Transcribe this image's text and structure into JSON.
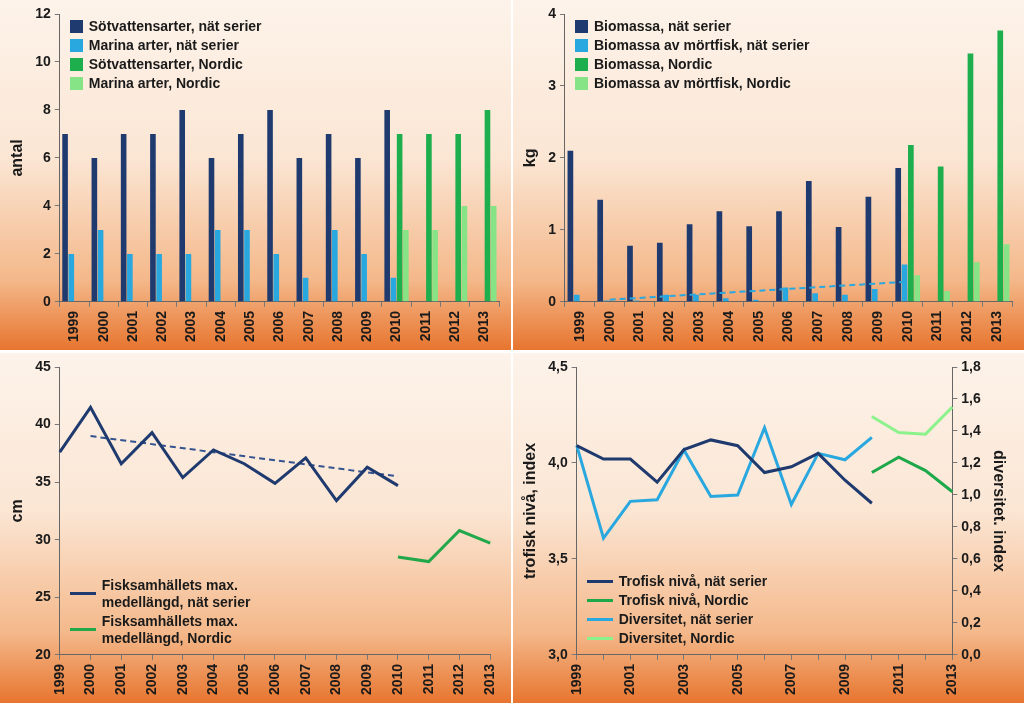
{
  "chart_data": [
    {
      "type": "bar",
      "ylabel": "antal",
      "categories": [
        "1999",
        "2000",
        "2001",
        "2002",
        "2003",
        "2004",
        "2005",
        "2006",
        "2007",
        "2008",
        "2009",
        "2010",
        "2011",
        "2012",
        "2013"
      ],
      "ylim": [
        0,
        12
      ],
      "yticks": [
        0,
        2,
        4,
        6,
        8,
        10,
        12
      ],
      "grid": false,
      "legend": "upper left",
      "series": [
        {
          "name": "Sötvattensarter, nät serier",
          "color": "#1f3a6e",
          "values": [
            7,
            6,
            7,
            7,
            8,
            6,
            7,
            8,
            6,
            7,
            6,
            8,
            null,
            null,
            null
          ]
        },
        {
          "name": "Marina arter, nät serier",
          "color": "#29a8e0",
          "values": [
            2,
            3,
            2,
            2,
            2,
            3,
            3,
            2,
            1,
            3,
            2,
            1,
            null,
            null,
            null
          ]
        },
        {
          "name": "Sötvattensarter, Nordic",
          "color": "#1daf4e",
          "values": [
            null,
            null,
            null,
            null,
            null,
            null,
            null,
            null,
            null,
            null,
            null,
            7,
            7,
            7,
            8
          ]
        },
        {
          "name": "Marina arter, Nordic",
          "color": "#86e386",
          "values": [
            null,
            null,
            null,
            null,
            null,
            null,
            null,
            null,
            null,
            null,
            null,
            3,
            3,
            4,
            4
          ]
        }
      ]
    },
    {
      "type": "bar",
      "ylabel": "kg",
      "categories": [
        "1999",
        "2000",
        "2001",
        "2002",
        "2003",
        "2004",
        "2005",
        "2006",
        "2007",
        "2008",
        "2009",
        "2010",
        "2011",
        "2012",
        "2013"
      ],
      "ylim": [
        0,
        4
      ],
      "yticks": [
        0,
        1,
        2,
        3,
        4
      ],
      "grid": false,
      "legend": "upper left",
      "series": [
        {
          "name": "Biomassa, nät serier",
          "color": "#1f3a6e",
          "values": [
            2.1,
            1.42,
            0.78,
            0.82,
            1.08,
            1.26,
            1.05,
            1.26,
            1.68,
            1.04,
            1.46,
            1.86,
            null,
            null,
            null
          ]
        },
        {
          "name": "Biomassa av mörtfisk, nät serier",
          "color": "#29a8e0",
          "values": [
            0.1,
            0.02,
            0.02,
            0.1,
            0.1,
            0.05,
            0.03,
            0.2,
            0.12,
            0.1,
            0.18,
            0.52,
            null,
            null,
            null
          ]
        },
        {
          "name": "Biomassa, Nordic",
          "color": "#1daf4e",
          "values": [
            null,
            null,
            null,
            null,
            null,
            null,
            null,
            null,
            null,
            null,
            null,
            2.18,
            1.88,
            3.45,
            3.77
          ]
        },
        {
          "name": "Biomassa av mörtfisk, Nordic",
          "color": "#86e386",
          "values": [
            null,
            null,
            null,
            null,
            null,
            null,
            null,
            null,
            null,
            null,
            null,
            0.37,
            0.15,
            0.55,
            0.8
          ]
        },
        {
          "type": "line",
          "line_style": "dashed",
          "marker": "none",
          "color": "#29a8e0",
          "values": [
            null,
            0.03,
            null,
            null,
            null,
            null,
            null,
            null,
            null,
            null,
            null,
            0.28,
            null,
            null,
            null
          ]
        }
      ]
    },
    {
      "type": "line",
      "ylabel": "cm",
      "marker": "none",
      "categories": [
        "1999",
        "2000",
        "2001",
        "2002",
        "2003",
        "2004",
        "2005",
        "2006",
        "2007",
        "2008",
        "2009",
        "2010",
        "2011",
        "2012",
        "2013"
      ],
      "ylim": [
        20,
        45
      ],
      "yticks": [
        20,
        25,
        30,
        35,
        40,
        45
      ],
      "grid": false,
      "legend": "lower left",
      "series": [
        {
          "name": "Fisksamhällets max. medellängd, nät serier",
          "color": "#1f3a6e",
          "values": [
            37.6,
            41.5,
            36.6,
            39.3,
            35.4,
            37.8,
            36.6,
            34.9,
            37.1,
            33.4,
            36.3,
            34.7,
            null,
            null,
            null
          ]
        },
        {
          "name": "Fisksamhällets max. medellängd, Nordic",
          "color": "#22a84a",
          "values": [
            null,
            null,
            null,
            null,
            null,
            null,
            null,
            null,
            null,
            null,
            null,
            28.5,
            28.1,
            30.8,
            29.7
          ]
        },
        {
          "line_style": "dashed",
          "color": "#34538f",
          "values": [
            null,
            39.0,
            null,
            null,
            null,
            null,
            null,
            null,
            null,
            null,
            null,
            35.5,
            null,
            null,
            null
          ]
        }
      ]
    },
    {
      "type": "line",
      "ylabel": "trofisk nivå, index",
      "y2label": "diversitet. index",
      "marker": "none",
      "categories": [
        "1999",
        null,
        "2001",
        null,
        "2003",
        null,
        "2005",
        null,
        "2007",
        null,
        "2009",
        null,
        "2011",
        null,
        "2013"
      ],
      "ylim": [
        3,
        4.5
      ],
      "yticks": [
        {
          "value": 3,
          "label": "3,0"
        },
        {
          "value": 3.5,
          "label": "3,5"
        },
        {
          "value": 4,
          "label": "4,0"
        },
        {
          "value": 4.5,
          "label": "4,5"
        }
      ],
      "y2lim": [
        0,
        1.8
      ],
      "y2ticks": [
        {
          "value": 0,
          "label": "0,0"
        },
        {
          "value": 0.2,
          "label": "0,2"
        },
        {
          "value": 0.4,
          "label": "0,4"
        },
        {
          "value": 0.6,
          "label": "0,6"
        },
        {
          "value": 0.8,
          "label": "0,8"
        },
        {
          "value": 1,
          "label": "1,0"
        },
        {
          "value": 1.2,
          "label": "1,2"
        },
        {
          "value": 1.4,
          "label": "1,4"
        },
        {
          "value": 1.6,
          "label": "1,6"
        },
        {
          "value": 1.8,
          "label": "1,8"
        }
      ],
      "grid": false,
      "legend": "lower left",
      "series": [
        {
          "name": "Trofisk nivå, nät serier",
          "color": "#1f3a6e",
          "values": [
            4.09,
            4.02,
            4.02,
            3.9,
            4.07,
            4.12,
            4.09,
            3.95,
            3.98,
            4.05,
            3.91,
            3.79,
            null,
            null,
            null
          ]
        },
        {
          "name": "Trofisk nivå, Nordic",
          "color": "#1da84a",
          "values": [
            null,
            null,
            null,
            null,
            null,
            null,
            null,
            null,
            null,
            null,
            null,
            3.95,
            4.03,
            3.96,
            3.85
          ]
        },
        {
          "name": "Diversitet, nät serier",
          "color": "#29a8e0",
          "axis": "y2",
          "values": [
            1.31,
            0.73,
            0.96,
            0.97,
            1.28,
            0.99,
            1.0,
            1.42,
            0.94,
            1.26,
            1.22,
            1.36,
            null,
            null,
            null
          ]
        },
        {
          "name": "Diversitet, Nordic",
          "color": "#8cf28c",
          "axis": "y2",
          "values": [
            null,
            null,
            null,
            null,
            null,
            null,
            null,
            null,
            null,
            null,
            null,
            1.49,
            1.39,
            1.38,
            1.55
          ]
        }
      ]
    }
  ]
}
